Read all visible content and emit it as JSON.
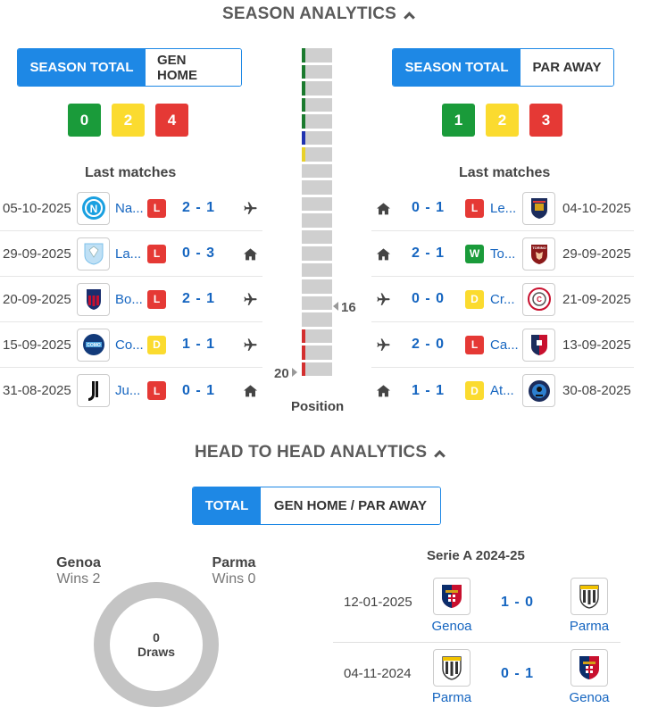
{
  "season": {
    "title": "SEASON ANALYTICS",
    "home": {
      "tabs": [
        "SEASON TOTAL",
        "GEN HOME"
      ],
      "wins": "0",
      "draws": "2",
      "losses": "4",
      "last_matches_title": "Last matches",
      "matches": [
        {
          "date": "05-10-2025",
          "team": "Na...",
          "result": "L",
          "score": "2 - 1",
          "venue": "away",
          "logo": "napoli"
        },
        {
          "date": "29-09-2025",
          "team": "La...",
          "result": "L",
          "score": "0 - 3",
          "venue": "home",
          "logo": "lazio"
        },
        {
          "date": "20-09-2025",
          "team": "Bo...",
          "result": "L",
          "score": "2 - 1",
          "venue": "away",
          "logo": "bologna"
        },
        {
          "date": "15-09-2025",
          "team": "Co...",
          "result": "D",
          "score": "1 - 1",
          "venue": "away",
          "logo": "como"
        },
        {
          "date": "31-08-2025",
          "team": "Ju...",
          "result": "L",
          "score": "0 - 1",
          "venue": "home",
          "logo": "juventus"
        }
      ]
    },
    "away": {
      "tabs": [
        "SEASON TOTAL",
        "PAR AWAY"
      ],
      "wins": "1",
      "draws": "2",
      "losses": "3",
      "last_matches_title": "Last matches",
      "matches": [
        {
          "date": "04-10-2025",
          "team": "Le...",
          "result": "L",
          "score": "0 - 1",
          "venue": "home",
          "logo": "lecce"
        },
        {
          "date": "29-09-2025",
          "team": "To...",
          "result": "W",
          "score": "2 - 1",
          "venue": "home",
          "logo": "torino"
        },
        {
          "date": "21-09-2025",
          "team": "Cr...",
          "result": "D",
          "score": "0 - 0",
          "venue": "away",
          "logo": "cremonese"
        },
        {
          "date": "13-09-2025",
          "team": "Ca...",
          "result": "L",
          "score": "2 - 0",
          "venue": "away",
          "logo": "cagliari"
        },
        {
          "date": "30-08-2025",
          "team": "At...",
          "result": "D",
          "score": "1 - 1",
          "venue": "home",
          "logo": "atalanta"
        }
      ]
    },
    "position": {
      "label": "Position",
      "parma_position": "16",
      "genoa_position": "20",
      "total_positions": 20,
      "markers": [
        "#1a7a2e",
        "#1a7a2e",
        "#1a7a2e",
        "#1a7a2e",
        "#1a7a2e",
        "#2033b0",
        "#e8d12a",
        "",
        "",
        "",
        "",
        "",
        "",
        "",
        "",
        "",
        "",
        "#d32f2f",
        "#d32f2f",
        "#d32f2f"
      ]
    }
  },
  "h2h": {
    "title": "HEAD TO HEAD ANALYTICS",
    "tabs": [
      "TOTAL",
      "GEN HOME / PAR AWAY"
    ],
    "home": {
      "name": "Genoa",
      "wins": "Wins 2"
    },
    "away": {
      "name": "Parma",
      "wins": "Wins 0"
    },
    "draws": {
      "count": "0",
      "label": "Draws"
    },
    "competition": "Serie A 2024-25",
    "matches": [
      {
        "date": "12-01-2025",
        "home": "Genoa",
        "away": "Parma",
        "score": "1 - 0",
        "home_logo": "genoa",
        "away_logo": "parma"
      },
      {
        "date": "04-11-2024",
        "home": "Parma",
        "away": "Genoa",
        "score": "0 - 1",
        "home_logo": "parma",
        "away_logo": "genoa"
      }
    ]
  }
}
